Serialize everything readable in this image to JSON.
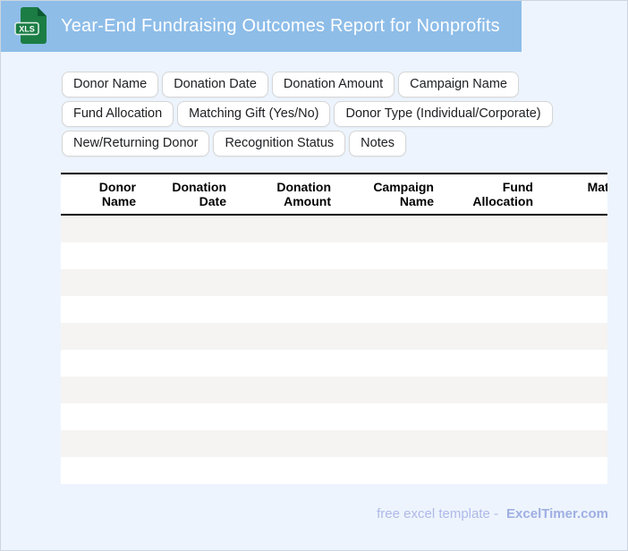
{
  "header": {
    "title": "Year-End Fundraising Outcomes Report for Nonprofits",
    "file_icon_label": "XLS"
  },
  "chips": [
    "Donor Name",
    "Donation Date",
    "Donation Amount",
    "Campaign Name",
    "Fund Allocation",
    "Matching Gift (Yes/No)",
    "Donor Type (Individual/Corporate)",
    "New/Returning Donor",
    "Recognition Status",
    "Notes"
  ],
  "table": {
    "columns": [
      "Donor\nName",
      "Donation\nDate",
      "Donation\nAmount",
      "Campaign\nName",
      "Fund\nAllocation",
      "Matching Gift\n(Yes/No)"
    ],
    "row_count": 10
  },
  "footer": {
    "tagline": "free excel template -",
    "brand": "ExcelTimer.com"
  },
  "colors": {
    "header_bar": "#8ebde8",
    "page_bg": "#edf4fd",
    "icon_green": "#1b7d44",
    "icon_fold": "#0c5a30",
    "stripe": "#f5f4f2",
    "footer_text": "#aeb9e8",
    "footer_brand": "#9fafe2"
  }
}
